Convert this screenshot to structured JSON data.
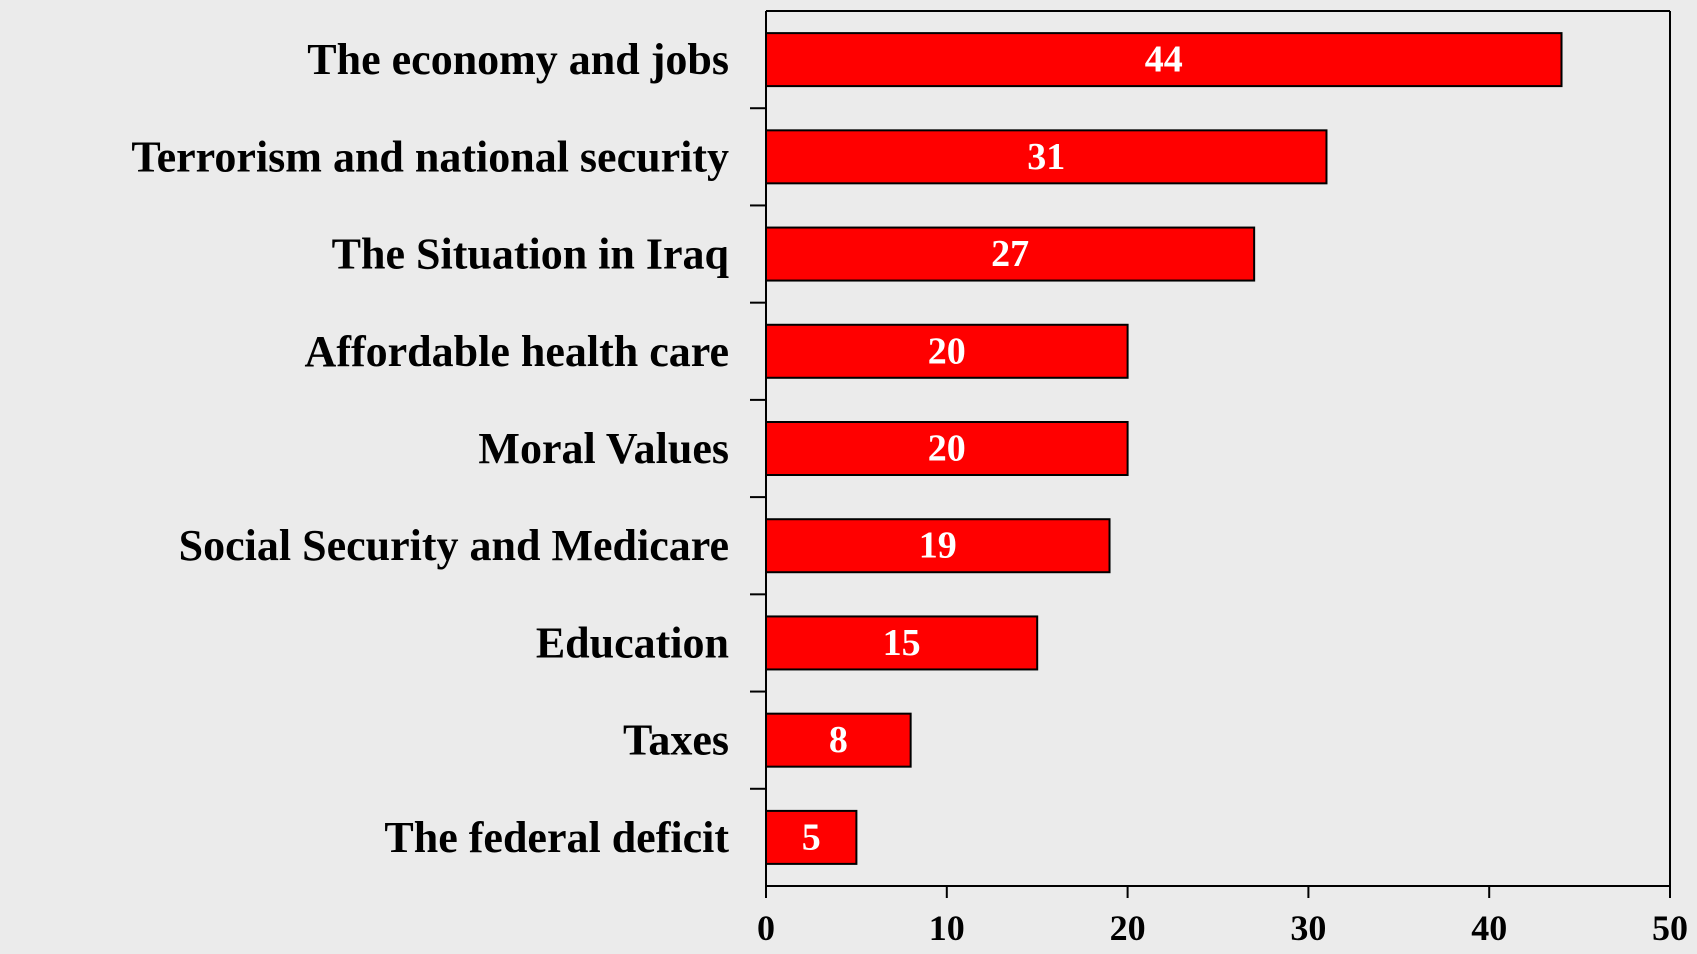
{
  "chart_data": {
    "type": "bar",
    "orientation": "horizontal",
    "categories": [
      "The economy and jobs",
      "Terrorism and national security",
      "The Situation in Iraq",
      "Affordable health care",
      "Moral Values",
      "Social Security and Medicare",
      "Education",
      "Taxes",
      "The federal deficit"
    ],
    "values": [
      44,
      31,
      27,
      20,
      20,
      19,
      15,
      8,
      5
    ],
    "data_labels": [
      "44",
      "31",
      "27",
      "20",
      "20",
      "19",
      "15",
      "8",
      "5"
    ],
    "x_ticks": [
      "0",
      "10",
      "20",
      "30",
      "40",
      "50"
    ],
    "xlim": [
      0,
      50
    ],
    "title": "",
    "xlabel": "",
    "ylabel": "",
    "grid": false,
    "legend": "none",
    "colors": {
      "bar_fill": "#ff0000",
      "bar_stroke": "#000000",
      "background": "#ebebeb",
      "value_text": "#ffffff",
      "axis": "#000000"
    }
  }
}
